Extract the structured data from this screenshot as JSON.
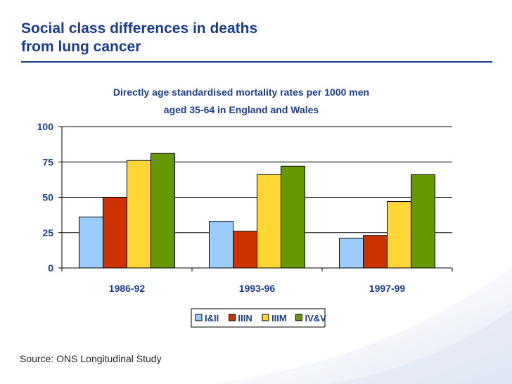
{
  "slide": {
    "title_line1": "Social class differences in deaths",
    "title_line2": "from lung cancer",
    "source": "Source: ONS Longitudinal Study"
  },
  "colors": {
    "title": "#1a3c8c",
    "axis": "#000000",
    "grid": "#000000"
  },
  "chart_data": {
    "type": "bar",
    "title_line1": "Directly age standardised mortality rates per 1000 men",
    "title_line2": "aged 35-64 in England and Wales",
    "categories": [
      "1986-92",
      "1993-96",
      "1997-99"
    ],
    "series": [
      {
        "name": "I&II",
        "color": "#99ccff",
        "values": [
          36,
          33,
          21
        ]
      },
      {
        "name": "IIIN",
        "color": "#cc3300",
        "values": [
          50,
          26,
          23
        ]
      },
      {
        "name": "IIIM",
        "color": "#ffd633",
        "values": [
          76,
          66,
          47
        ]
      },
      {
        "name": "IV&V",
        "color": "#669900",
        "values": [
          81,
          72,
          66
        ]
      }
    ],
    "yticks": [
      0,
      25,
      50,
      75,
      100
    ],
    "ylim": [
      0,
      100
    ],
    "grid": true,
    "legend": "bottom",
    "xlabel": "",
    "ylabel": ""
  }
}
